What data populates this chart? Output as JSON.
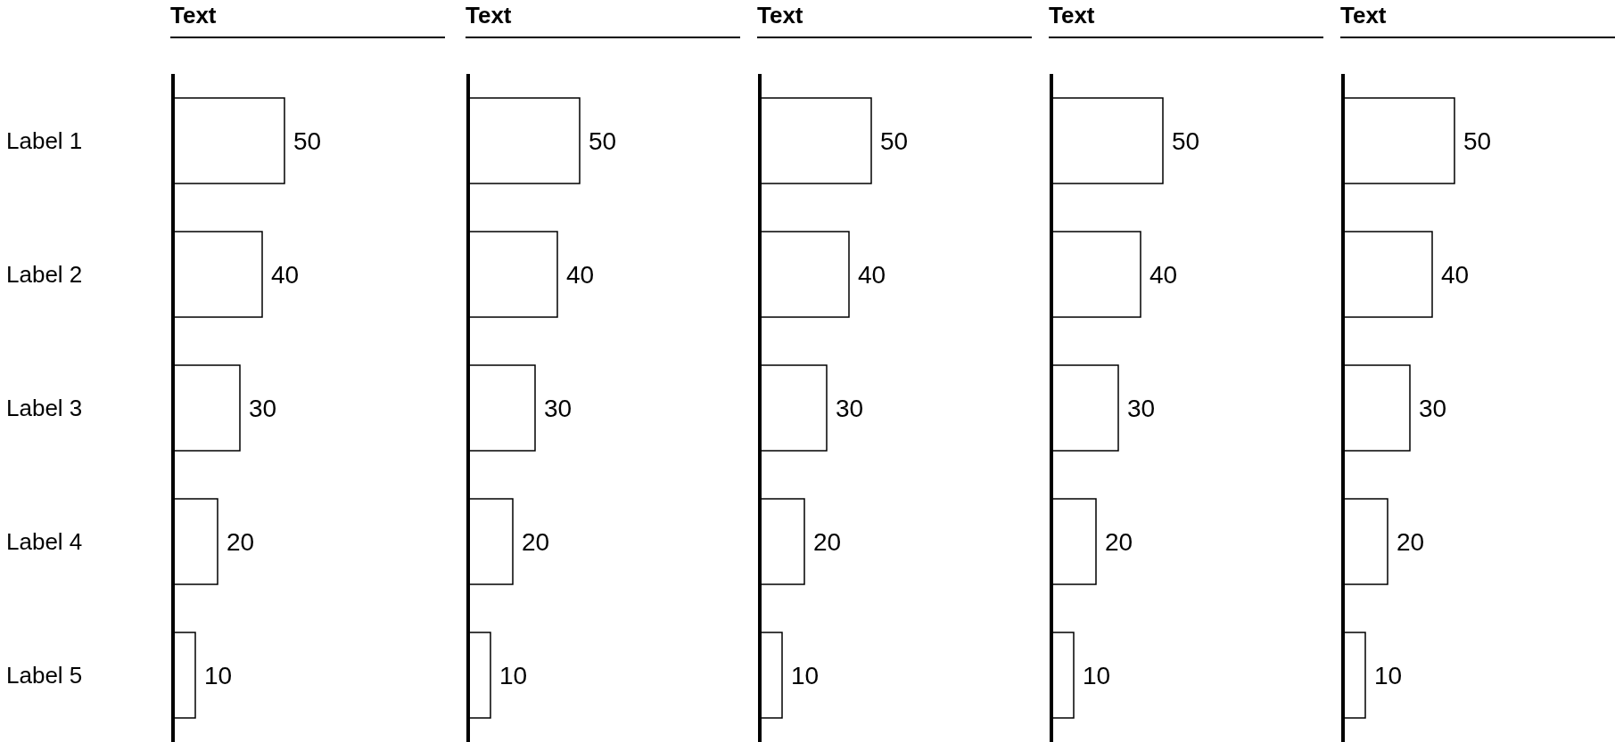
{
  "chart_data": [
    {
      "type": "bar",
      "orientation": "horizontal",
      "title": "Text",
      "categories": [
        "Label 1",
        "Label 2",
        "Label 3",
        "Label 4",
        "Label 5"
      ],
      "values": [
        50,
        40,
        30,
        20,
        10
      ],
      "color": "#ffffff",
      "data_labels": true,
      "tick_labels": "y"
    },
    {
      "type": "bar",
      "orientation": "horizontal",
      "title": "Text",
      "values": [
        50,
        40,
        30,
        20,
        10
      ],
      "color": "#ffffff",
      "data_labels": true,
      "tick_labels": false
    },
    {
      "type": "bar",
      "orientation": "horizontal",
      "title": "Text",
      "values": [
        50,
        40,
        30,
        20,
        10
      ],
      "color": "#ffffff",
      "data_labels": true,
      "tick_labels": false
    },
    {
      "type": "bar",
      "orientation": "horizontal",
      "title": "Text",
      "values": [
        50,
        40,
        30,
        20,
        10
      ],
      "color": "#ffffff",
      "data_labels": true,
      "tick_labels": false
    },
    {
      "type": "bar",
      "orientation": "horizontal",
      "title": "Text",
      "values": [
        50,
        40,
        30,
        20,
        10
      ],
      "color": "#ffffff",
      "data_labels": true,
      "tick_labels": false
    }
  ]
}
